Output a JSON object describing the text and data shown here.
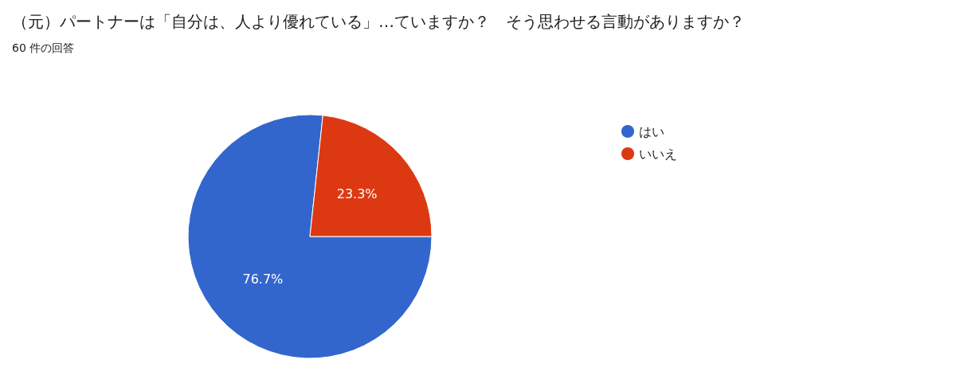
{
  "chart_data": {
    "type": "pie",
    "title": "（元）パートナーは「自分は、人より優れている」…ていますか？　そう思わせる言動がありますか？",
    "subtitle": "60 件の回答",
    "categories": [
      "はい",
      "いいえ"
    ],
    "values": [
      76.7,
      23.3
    ],
    "colors": [
      "#3366cc",
      "#dc3912"
    ],
    "value_labels": [
      "76.7%",
      "23.3%"
    ],
    "legend": "top right"
  }
}
